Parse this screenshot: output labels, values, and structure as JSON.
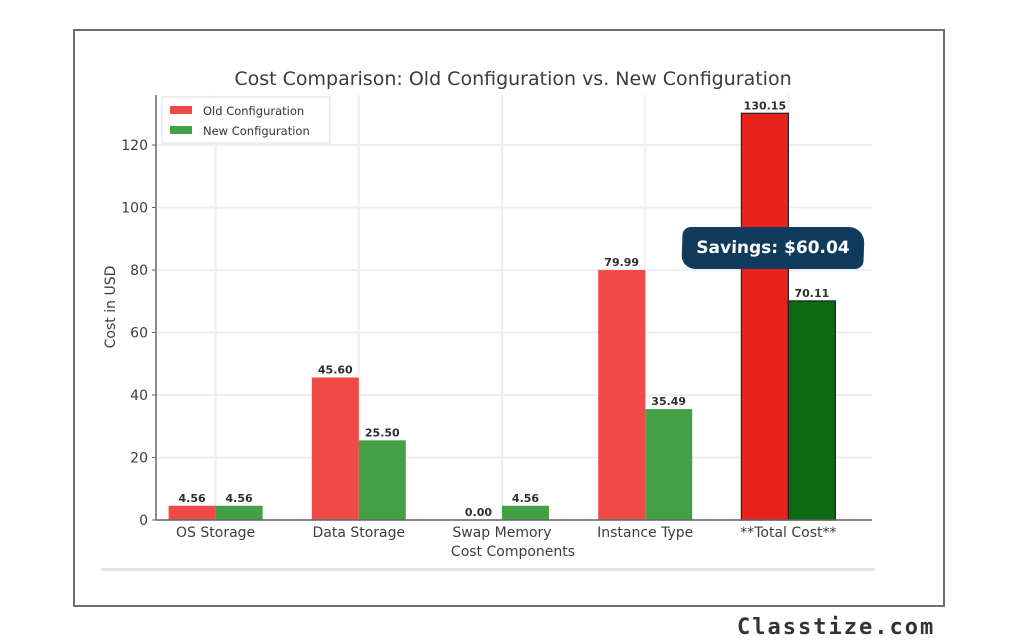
{
  "chart_data": {
    "type": "bar",
    "title": "Cost Comparison: Old Configuration vs. New Configuration",
    "xlabel": "Cost Components",
    "ylabel": "Cost in USD",
    "categories": [
      "OS Storage",
      "Data Storage",
      "Swap Memory",
      "Instance Type",
      "**Total Cost**"
    ],
    "series": [
      {
        "name": "Old Configuration",
        "color": "#f04a48",
        "highlight_color": "#e8231c",
        "values": [
          4.56,
          45.6,
          0.0,
          79.99,
          130.15
        ],
        "labels": [
          "4.56",
          "45.60",
          "0.00",
          "79.99",
          "130.15"
        ]
      },
      {
        "name": "New Configuration",
        "color": "#43a047",
        "highlight_color": "#0b6a12",
        "values": [
          4.56,
          25.5,
          4.56,
          35.49,
          70.11
        ],
        "labels": [
          "4.56",
          "25.50",
          "4.56",
          "35.49",
          "70.11"
        ]
      }
    ],
    "yticks": [
      0,
      20,
      40,
      60,
      80,
      100,
      120
    ],
    "ylim": [
      0,
      136
    ],
    "grid": true,
    "legend_position": "top-left",
    "annotation": "Savings: $60.04"
  },
  "watermark": "Classtize.com"
}
